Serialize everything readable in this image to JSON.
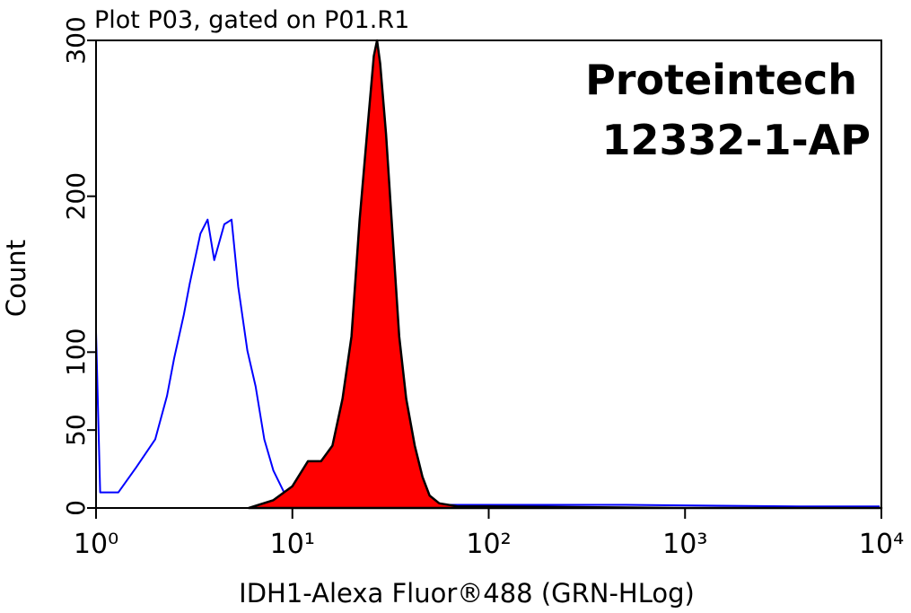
{
  "chart_data": {
    "type": "line",
    "title": "Plot P03, gated on P01.R1",
    "annotations": [
      "Proteintech",
      "12332-1-AP"
    ],
    "x_label": "IDH1-Alexa Fluor®488 (GRN-HLog)",
    "y_label": "Count",
    "xscale": "log",
    "xlim": [
      1,
      10000
    ],
    "xticks": [
      {
        "value": 1,
        "label": "10⁰"
      },
      {
        "value": 10,
        "label": "10¹"
      },
      {
        "value": 100,
        "label": "10²"
      },
      {
        "value": 1000,
        "label": "10³"
      },
      {
        "value": 10000,
        "label": "10⁴"
      }
    ],
    "ylim": [
      0,
      300
    ],
    "yticks": [
      0,
      50,
      100,
      200,
      300
    ],
    "series": [
      {
        "color": "#0000ff",
        "fill": false,
        "x": [
          1,
          1.05,
          1.3,
          1.6,
          2,
          2.3,
          2.5,
          2.8,
          3,
          3.4,
          3.7,
          4,
          4.5,
          4.9,
          5.3,
          5.9,
          6.5,
          7.2,
          8,
          9.4,
          13,
          60,
          500,
          4000,
          9800
        ],
        "values": [
          113,
          10,
          10,
          26,
          44,
          72,
          96,
          124,
          144,
          176,
          185,
          159,
          182,
          185,
          142,
          101,
          78,
          44,
          24,
          6,
          2,
          2,
          2,
          1,
          1
        ]
      },
      {
        "color": "#ff0000",
        "fill": true,
        "x": [
          6,
          8,
          10,
          12,
          14,
          16,
          18,
          20,
          22,
          24,
          26,
          27,
          28,
          30,
          32,
          35,
          38,
          42,
          46,
          50,
          56,
          70,
          100,
          1000,
          10000
        ],
        "values": [
          0,
          5,
          14,
          30,
          30,
          40,
          70,
          110,
          185,
          240,
          290,
          300,
          285,
          240,
          185,
          110,
          70,
          40,
          20,
          8,
          3,
          1,
          1,
          0,
          0
        ]
      }
    ]
  }
}
